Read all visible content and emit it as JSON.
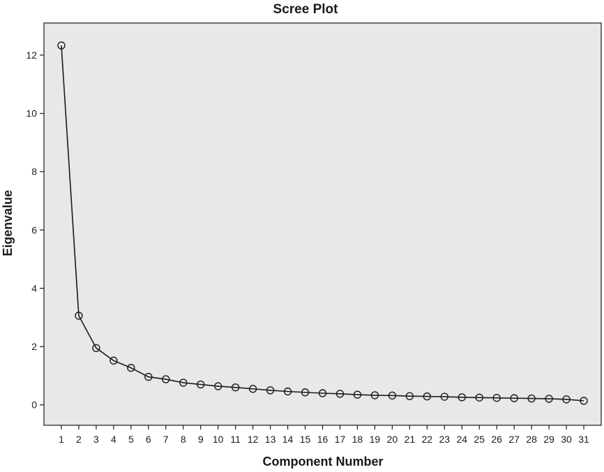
{
  "chart_data": {
    "type": "line",
    "title": "Scree Plot",
    "xlabel": "Component Number",
    "ylabel": "Eigenvalue",
    "x": [
      1,
      2,
      3,
      4,
      5,
      6,
      7,
      8,
      9,
      10,
      11,
      12,
      13,
      14,
      15,
      16,
      17,
      18,
      19,
      20,
      21,
      22,
      23,
      24,
      25,
      26,
      27,
      28,
      29,
      30,
      31
    ],
    "y": [
      12.33,
      3.06,
      1.95,
      1.52,
      1.27,
      0.96,
      0.88,
      0.76,
      0.7,
      0.64,
      0.6,
      0.55,
      0.5,
      0.46,
      0.43,
      0.4,
      0.38,
      0.35,
      0.33,
      0.32,
      0.3,
      0.29,
      0.28,
      0.26,
      0.25,
      0.24,
      0.23,
      0.22,
      0.21,
      0.19,
      0.14
    ],
    "xticks": [
      "1",
      "2",
      "3",
      "4",
      "5",
      "6",
      "7",
      "8",
      "9",
      "10",
      "11",
      "12",
      "13",
      "14",
      "15",
      "16",
      "17",
      "18",
      "19",
      "20",
      "21",
      "22",
      "23",
      "24",
      "25",
      "26",
      "27",
      "28",
      "29",
      "30",
      "31"
    ],
    "yticks": [
      0,
      2,
      4,
      6,
      8,
      10,
      12
    ],
    "ylim": [
      -0.7,
      13.1
    ],
    "xlim": [
      0,
      32
    ],
    "grid": false,
    "marker": "open-circle",
    "colors": {
      "plot_background": "#e8e8e8",
      "line": "#1a1a1a",
      "frame": "#1a1a1a"
    }
  }
}
